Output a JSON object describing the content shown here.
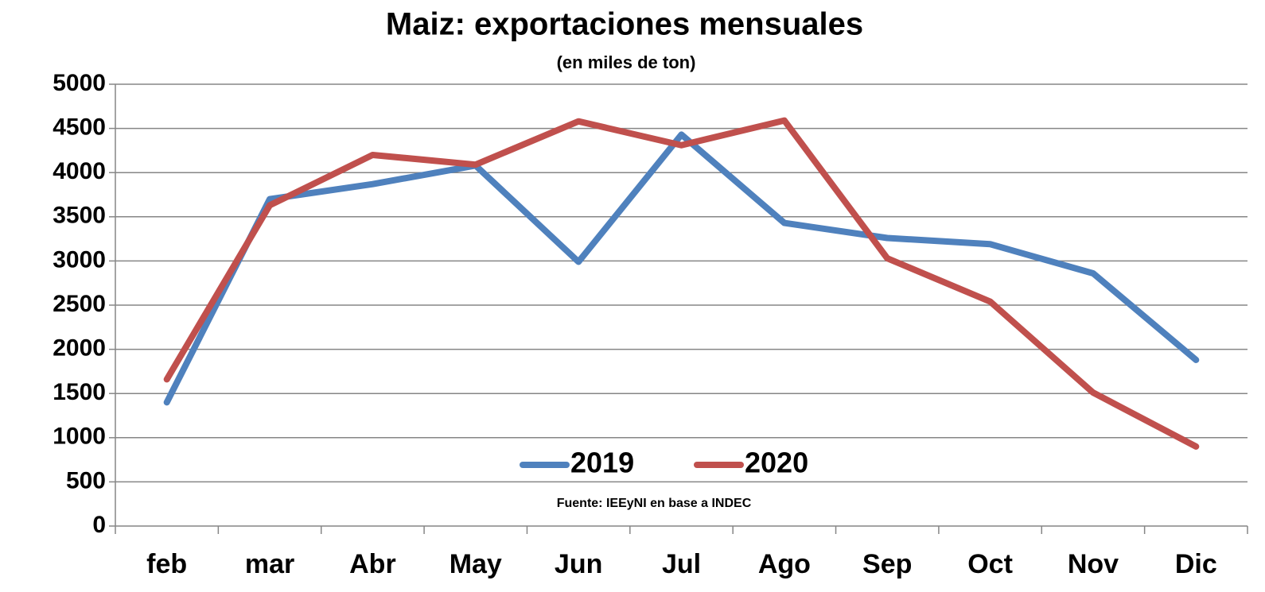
{
  "chart_data": {
    "type": "line",
    "title": "Maiz: exportaciones mensuales",
    "subtitle": "(en miles de ton)",
    "annotation": "Fuente: IEEyNI en base a INDEC",
    "categories": [
      "feb",
      "mar",
      "Abr",
      "May",
      "Jun",
      "Jul",
      "Ago",
      "Sep",
      "Oct",
      "Nov",
      "Dic"
    ],
    "series": [
      {
        "name": "2019",
        "color": "#4f81bd",
        "values": [
          1400,
          3700,
          3870,
          4080,
          2990,
          4430,
          3430,
          3260,
          3190,
          2860,
          1880
        ]
      },
      {
        "name": "2020",
        "color": "#c0504d",
        "values": [
          1660,
          3630,
          4200,
          4090,
          4580,
          4310,
          4590,
          3030,
          2540,
          1510,
          900
        ]
      }
    ],
    "ylim": [
      0,
      5000
    ],
    "yticks": [
      0,
      500,
      1000,
      1500,
      2000,
      2500,
      3000,
      3500,
      4000,
      4500,
      5000
    ],
    "grid": true,
    "legend": "bottom"
  }
}
